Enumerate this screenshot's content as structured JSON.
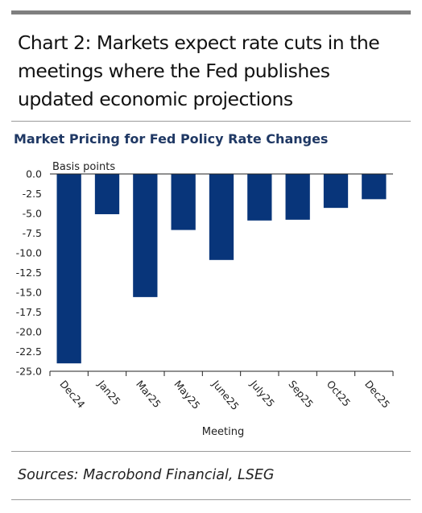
{
  "headline": "Chart 2: Markets expect rate cuts in the meetings where the Fed publishes updated economic projections",
  "sources": "Sources: Macrobond Financial, LSEG",
  "chart_data": {
    "type": "bar",
    "title": "Market Pricing for Fed Policy Rate Changes",
    "ylabel": "Basis points",
    "xlabel": "Meeting",
    "categories": [
      "Dec24",
      "Jan25",
      "Mar25",
      "May25",
      "June25",
      "July25",
      "Sep25",
      "Oct25",
      "Dec25"
    ],
    "values": [
      -24.0,
      -5.1,
      -15.6,
      -7.1,
      -10.9,
      -5.9,
      -5.8,
      -4.3,
      -3.2
    ],
    "ylim": [
      -25,
      0
    ],
    "yticks": [
      "0.0",
      "-2.5",
      "-5.0",
      "-7.5",
      "-10.0",
      "-12.5",
      "-15.0",
      "-17.5",
      "-20.0",
      "-22.5",
      "-25.0"
    ],
    "grid": false,
    "bar_color": "#08357a"
  }
}
